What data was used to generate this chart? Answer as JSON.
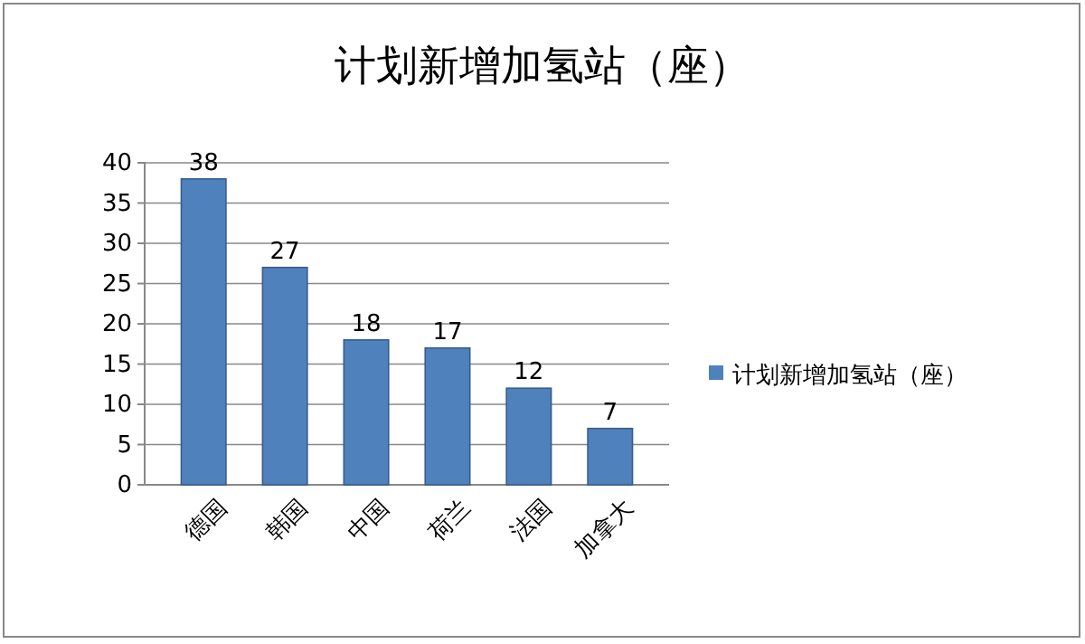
{
  "chart_data": {
    "type": "bar",
    "title": "计划新增加氢站（座）",
    "categories": [
      "德国",
      "韩国",
      "中国",
      "荷兰",
      "法国",
      "加拿大"
    ],
    "series": [
      {
        "name": "计划新增加氢站（座）",
        "color": "#4f81bd",
        "values": [
          38,
          27,
          18,
          17,
          12,
          7
        ]
      }
    ],
    "ylim": [
      0,
      40
    ],
    "yticks": [
      0,
      5,
      10,
      15,
      20,
      25,
      30,
      35,
      40
    ],
    "grid": "y",
    "legend": "right",
    "data_labels": true
  }
}
